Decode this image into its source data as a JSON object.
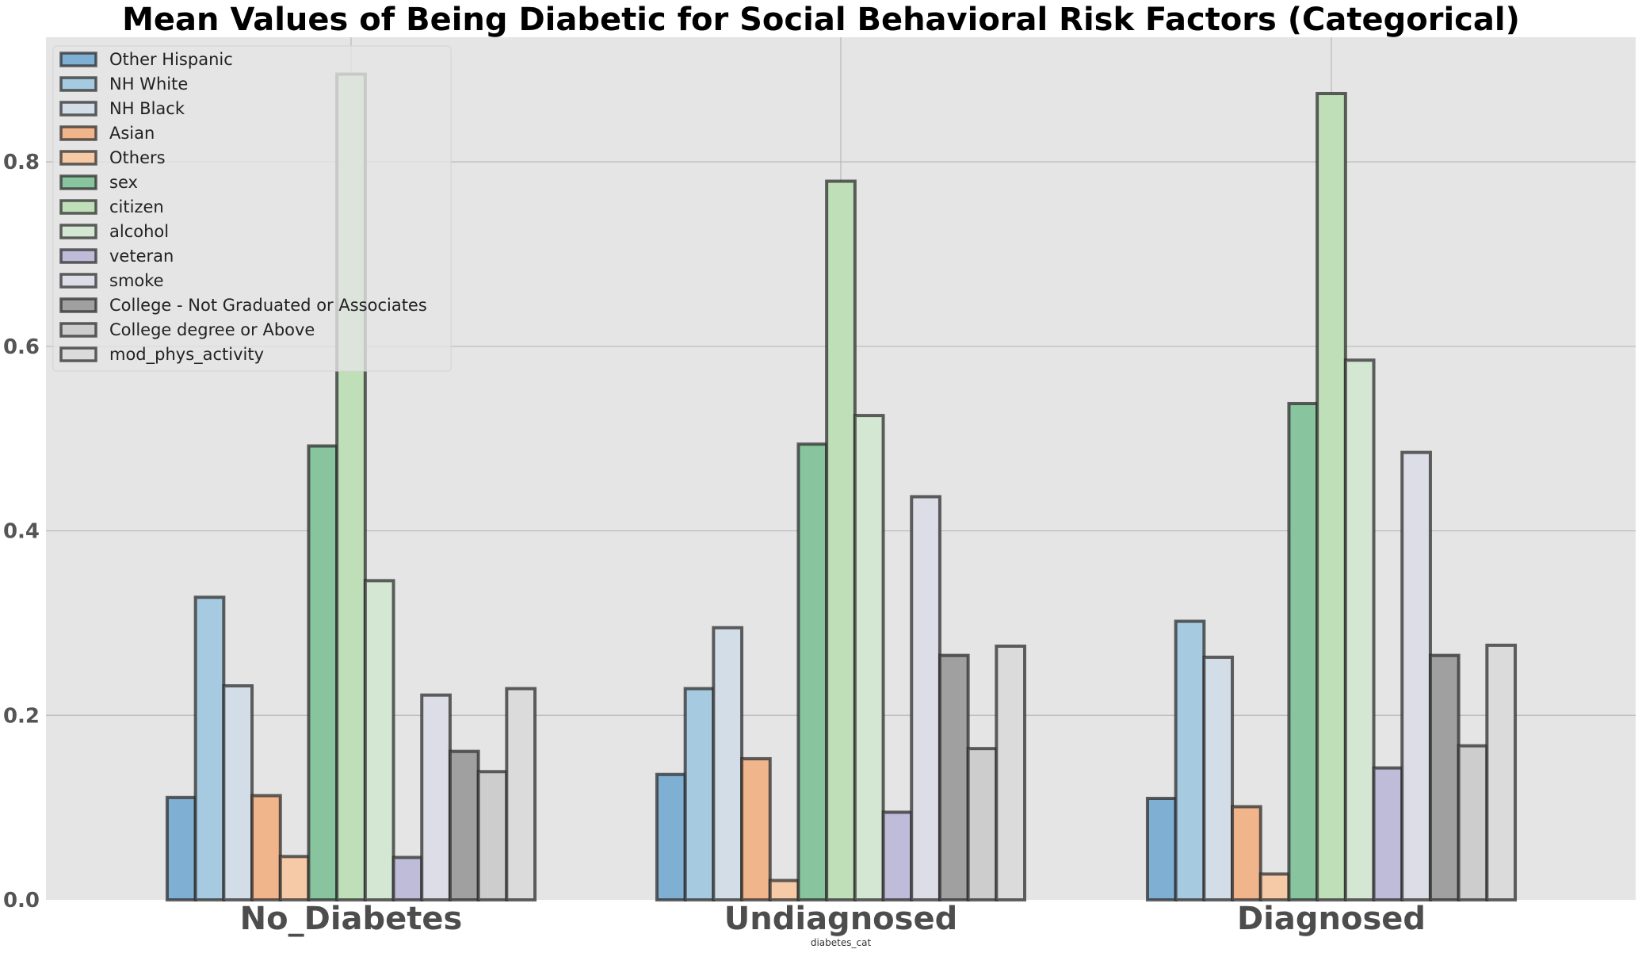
{
  "chart_data": {
    "type": "bar",
    "title": "Mean Values of Being Diabetic for Social Behavioral Risk Factors (Categorical)",
    "xlabel": "diabetes_cat",
    "ylabel": "",
    "categories": [
      "No_Diabetes",
      "Undiagnosed",
      "Diagnosed"
    ],
    "ylim": [
      0,
      0.935
    ],
    "yticks": [
      "0.0",
      "0.2",
      "0.4",
      "0.6",
      "0.8"
    ],
    "ytick_values": [
      0.0,
      0.2,
      0.4,
      0.6,
      0.8
    ],
    "grid": true,
    "legend_position": "top-left",
    "series": [
      {
        "name": "Other Hispanic",
        "color": "#7fafd2",
        "values": [
          0.111,
          0.136,
          0.11
        ]
      },
      {
        "name": "NH White",
        "color": "#a6cae0",
        "values": [
          0.328,
          0.229,
          0.302
        ]
      },
      {
        "name": "NH Black",
        "color": "#d3dde8",
        "values": [
          0.232,
          0.295,
          0.263
        ]
      },
      {
        "name": "Asian",
        "color": "#f1b58c",
        "values": [
          0.113,
          0.153,
          0.101
        ]
      },
      {
        "name": "Others",
        "color": "#f6caa6",
        "values": [
          0.047,
          0.021,
          0.028
        ]
      },
      {
        "name": "sex",
        "color": "#88c49d",
        "values": [
          0.492,
          0.494,
          0.538
        ]
      },
      {
        "name": "citizen",
        "color": "#bfdfb9",
        "values": [
          0.895,
          0.779,
          0.874
        ]
      },
      {
        "name": "alcohol",
        "color": "#d4e7d2",
        "values": [
          0.346,
          0.525,
          0.585
        ]
      },
      {
        "name": "veteran",
        "color": "#bebcd8",
        "values": [
          0.046,
          0.095,
          0.143
        ]
      },
      {
        "name": "smoke",
        "color": "#dcdde6",
        "values": [
          0.222,
          0.437,
          0.485
        ]
      },
      {
        "name": "College - Not Graduated or Associates",
        "color": "#a0a0a0",
        "values": [
          0.161,
          0.265,
          0.265
        ]
      },
      {
        "name": "College degree or Above",
        "color": "#cdcdcd",
        "values": [
          0.139,
          0.164,
          0.167
        ]
      },
      {
        "name": "mod_phys_activity",
        "color": "#dbdbdb",
        "values": [
          0.229,
          0.275,
          0.276
        ]
      }
    ]
  }
}
